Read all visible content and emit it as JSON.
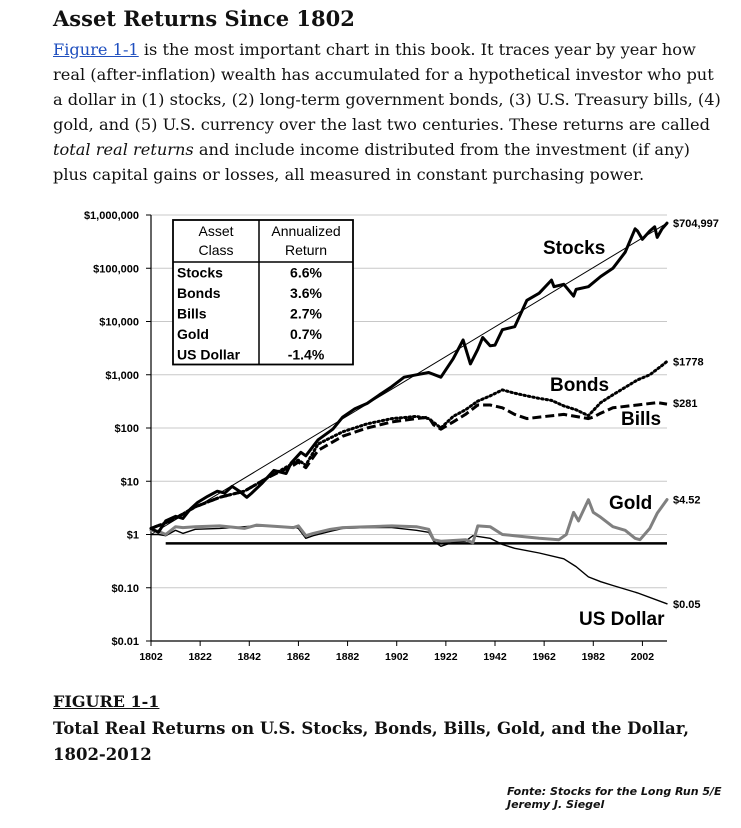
{
  "header": {
    "title": "Asset Returns Since 1802"
  },
  "intro": {
    "link_text": "Figure 1-1",
    "seg1": " is the most important chart in this book. It traces year by year how real (after-inflation) wealth has accumulated for a hypothetical investor who put a dollar in (1) stocks, (2) long-term government bonds, (3) U.S. Treasury bills, (4) gold, and (5) U.S. currency over the last two centuries. These returns are called ",
    "emph1": "total real returns",
    "seg2": " and include income distributed from the investment (if any) plus capital gains or losses, all measured in constant purchasing power."
  },
  "figure": {
    "label": "FIGURE 1-1",
    "caption": "Total Real Returns on U.S. Stocks, Bonds, Bills, Gold, and the Dollar, 1802-2012"
  },
  "source": {
    "line1": "Fonte: Stocks for the Long Run 5/E",
    "line2": "Jeremy J. Siegel"
  },
  "chart_data": {
    "type": "line",
    "y_scale": "log",
    "xlim": [
      1802,
      2012
    ],
    "ylim": [
      0.01,
      1000000
    ],
    "x_ticks": [
      "1802",
      "1822",
      "1842",
      "1862",
      "1882",
      "1902",
      "1922",
      "1942",
      "1962",
      "1982",
      "2002"
    ],
    "y_ticks": [
      {
        "value": 0.01,
        "label": "$0.01"
      },
      {
        "value": 0.1,
        "label": "$0.10"
      },
      {
        "value": 1,
        "label": "$1"
      },
      {
        "value": 10,
        "label": "$10"
      },
      {
        "value": 100,
        "label": "$100"
      },
      {
        "value": 1000,
        "label": "$1,000"
      },
      {
        "value": 10000,
        "label": "$10,000"
      },
      {
        "value": 100000,
        "label": "$100,000"
      },
      {
        "value": 1000000,
        "label": "$1,000,000"
      }
    ],
    "grid": true,
    "series": [
      {
        "name": "Stocks",
        "end_label": "$704,997",
        "color": "#000000",
        "style": "solid-thick",
        "x": [
          1802,
          1805,
          1808,
          1812,
          1815,
          1818,
          1821,
          1825,
          1829,
          1832,
          1835,
          1838,
          1841,
          1843,
          1847,
          1852,
          1857,
          1859,
          1863,
          1865,
          1870,
          1876,
          1880,
          1885,
          1890,
          1895,
          1900,
          1905,
          1910,
          1915,
          1920,
          1925,
          1929,
          1932,
          1935,
          1937,
          1940,
          1942,
          1945,
          1950,
          1955,
          1960,
          1965,
          1966,
          1970,
          1974,
          1975,
          1980,
          1985,
          1990,
          1995,
          1999,
          2000,
          2002,
          2005,
          2007,
          2008,
          2010,
          2012
        ],
        "values": [
          1.3,
          1.1,
          1.8,
          2.2,
          2.0,
          3.0,
          4.0,
          5.2,
          6.5,
          6.0,
          8.0,
          6.5,
          5.0,
          6.0,
          9.0,
          16,
          14,
          22,
          35,
          30,
          60,
          95,
          160,
          230,
          290,
          420,
          600,
          900,
          1000,
          1100,
          900,
          2000,
          4500,
          1600,
          3000,
          5000,
          3500,
          3600,
          7000,
          8000,
          25000,
          34000,
          60000,
          45000,
          50000,
          30000,
          40000,
          45000,
          70000,
          100000,
          200000,
          550000,
          500000,
          350000,
          500000,
          600000,
          380000,
          550000,
          704997
        ]
      },
      {
        "name": "Bonds",
        "end_label": "$1778",
        "color": "#000000",
        "style": "dotted",
        "x": [
          1802,
          1810,
          1820,
          1830,
          1840,
          1850,
          1860,
          1862,
          1865,
          1870,
          1880,
          1890,
          1900,
          1910,
          1915,
          1920,
          1925,
          1930,
          1935,
          1940,
          1945,
          1950,
          1955,
          1960,
          1965,
          1970,
          1975,
          1980,
          1985,
          1990,
          2000,
          2005,
          2010,
          2012
        ],
        "values": [
          1.3,
          1.8,
          3.3,
          5.0,
          6.5,
          12,
          22,
          25,
          20,
          50,
          85,
          120,
          150,
          165,
          150,
          100,
          165,
          220,
          320,
          400,
          520,
          450,
          400,
          360,
          330,
          260,
          220,
          170,
          300,
          420,
          800,
          1000,
          1500,
          1778
        ]
      },
      {
        "name": "Bills",
        "end_label": "$281",
        "color": "#000000",
        "style": "dashed",
        "x": [
          1802,
          1810,
          1820,
          1830,
          1840,
          1850,
          1860,
          1862,
          1865,
          1870,
          1880,
          1890,
          1900,
          1910,
          1915,
          1917,
          1920,
          1925,
          1930,
          1935,
          1940,
          1945,
          1950,
          1955,
          1960,
          1970,
          1980,
          1982,
          1985,
          1990,
          2000,
          2008,
          2012
        ],
        "values": [
          1.3,
          1.8,
          3.3,
          5.0,
          6.5,
          12,
          20,
          23,
          18,
          38,
          70,
          100,
          130,
          150,
          160,
          115,
          95,
          130,
          180,
          270,
          270,
          240,
          180,
          150,
          160,
          180,
          150,
          160,
          190,
          240,
          270,
          300,
          281
        ]
      },
      {
        "name": "Gold",
        "end_label": "$4.52",
        "color": "#808080",
        "style": "solid-grey",
        "x": [
          1802,
          1805,
          1808,
          1812,
          1815,
          1820,
          1830,
          1840,
          1845,
          1855,
          1860,
          1862,
          1865,
          1868,
          1875,
          1880,
          1890,
          1900,
          1910,
          1915,
          1917,
          1920,
          1930,
          1933,
          1935,
          1940,
          1945,
          1950,
          1960,
          1968,
          1971,
          1974,
          1976,
          1980,
          1982,
          1985,
          1990,
          1995,
          1999,
          2001,
          2005,
          2008,
          2012
        ],
        "values": [
          1.2,
          1.15,
          1.0,
          1.4,
          1.35,
          1.4,
          1.45,
          1.3,
          1.5,
          1.4,
          1.35,
          1.45,
          0.95,
          1.05,
          1.25,
          1.35,
          1.4,
          1.45,
          1.4,
          1.25,
          0.8,
          0.75,
          0.8,
          0.7,
          1.45,
          1.4,
          1.0,
          0.95,
          0.85,
          0.8,
          1.0,
          2.6,
          1.8,
          4.5,
          2.6,
          2.1,
          1.4,
          1.2,
          0.85,
          0.8,
          1.3,
          2.5,
          4.52
        ]
      },
      {
        "name": "US Dollar",
        "end_label": "$0.05",
        "color": "#000000",
        "style": "solid-thin",
        "x": [
          1802,
          1805,
          1808,
          1812,
          1815,
          1820,
          1830,
          1840,
          1845,
          1855,
          1860,
          1862,
          1865,
          1868,
          1875,
          1880,
          1890,
          1900,
          1910,
          1915,
          1917,
          1920,
          1925,
          1930,
          1933,
          1940,
          1945,
          1950,
          1960,
          1970,
          1975,
          1980,
          1985,
          1990,
          2000,
          2012
        ],
        "values": [
          1.0,
          1.0,
          0.95,
          1.2,
          1.05,
          1.25,
          1.3,
          1.4,
          1.45,
          1.4,
          1.4,
          1.3,
          0.85,
          0.95,
          1.15,
          1.3,
          1.35,
          1.35,
          1.2,
          1.1,
          0.75,
          0.6,
          0.72,
          0.75,
          0.95,
          0.85,
          0.65,
          0.55,
          0.45,
          0.35,
          0.25,
          0.16,
          0.13,
          0.11,
          0.08,
          0.05
        ]
      },
      {
        "name": "Stocks trend",
        "style": "thin-straight",
        "color": "#000000",
        "x": [
          1802,
          2012
        ],
        "values": [
          1.0,
          704997
        ]
      },
      {
        "name": "Baseline",
        "style": "thick-flat",
        "color": "#000000",
        "x": [
          1808,
          2012
        ],
        "values": [
          0.68,
          0.68
        ]
      }
    ],
    "labels": [
      {
        "text": "Stocks",
        "series": "Stocks"
      },
      {
        "text": "Bonds",
        "series": "Bonds"
      },
      {
        "text": "Bills",
        "series": "Bills"
      },
      {
        "text": "Gold",
        "series": "Gold"
      },
      {
        "text": "US Dollar",
        "series": "US Dollar"
      }
    ],
    "table": {
      "headers": [
        "Asset Class",
        "Annualized Return"
      ],
      "rows": [
        [
          "Stocks",
          "6.6%"
        ],
        [
          "Bonds",
          "3.6%"
        ],
        [
          "Bills",
          "2.7%"
        ],
        [
          "Gold",
          "0.7%"
        ],
        [
          "US Dollar",
          "-1.4%"
        ]
      ]
    }
  }
}
